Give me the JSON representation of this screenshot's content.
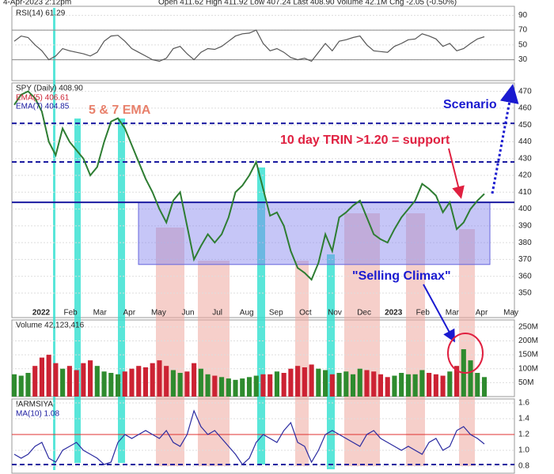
{
  "header": {
    "date": "4-Apr-2023 2:12pm",
    "quote": "Open 411.62 High 411.92 Low 407.24 Last 408.90 Volume 42.1M Chg -2.05 (-0.50%)"
  },
  "chart_data": [
    {
      "type": "line",
      "title": "RSI(14) 61.29",
      "color": "#555555",
      "ylim": [
        5,
        100
      ],
      "yticks": [
        30,
        50,
        70,
        90
      ],
      "hlines": [
        70,
        30
      ],
      "values": [
        55,
        62,
        60,
        50,
        42,
        30,
        35,
        45,
        42,
        40,
        38,
        35,
        40,
        55,
        62,
        63,
        55,
        45,
        40,
        35,
        30,
        28,
        32,
        45,
        48,
        38,
        30,
        40,
        45,
        44,
        48,
        55,
        62,
        65,
        66,
        70,
        52,
        42,
        45,
        40,
        33,
        30,
        32,
        28,
        40,
        52,
        42,
        55,
        57,
        60,
        62,
        50,
        42,
        41,
        40,
        48,
        52,
        57,
        58,
        65,
        62,
        58,
        48,
        52,
        42,
        45,
        52,
        58,
        61
      ]
    },
    {
      "type": "line",
      "title": "SPY (Daily) 408.90",
      "color": "#2e7d32",
      "legend_labels": [
        "EMA(5) 406.61",
        "EMA(7) 404.85"
      ],
      "annotations": [
        "5 & 7 EMA",
        "Scenario",
        "10 day TRIN >1.20 = support",
        "\"Selling Climax\""
      ],
      "xtick_labels": [
        "2022",
        "Feb",
        "Mar",
        "Apr",
        "May",
        "Jun",
        "Jul",
        "Aug",
        "Sep",
        "Oct",
        "Nov",
        "Dec",
        "2023",
        "Feb",
        "Mar",
        "Apr",
        "May"
      ],
      "ylim": [
        342,
        475
      ],
      "yticks": [
        350,
        360,
        370,
        380,
        390,
        400,
        410,
        420,
        430,
        440,
        450,
        460,
        470
      ],
      "hlines": [
        451,
        428,
        404
      ],
      "zone": [
        367,
        404
      ],
      "values": [
        462,
        468,
        470,
        466,
        458,
        440,
        432,
        448,
        440,
        435,
        430,
        420,
        425,
        440,
        452,
        454,
        448,
        438,
        428,
        418,
        410,
        400,
        392,
        405,
        410,
        390,
        370,
        378,
        385,
        380,
        385,
        395,
        410,
        414,
        420,
        428,
        412,
        396,
        398,
        390,
        375,
        365,
        362,
        358,
        368,
        385,
        375,
        395,
        398,
        402,
        405,
        395,
        385,
        382,
        380,
        388,
        395,
        400,
        405,
        415,
        412,
        408,
        398,
        404,
        388,
        392,
        400,
        405,
        409
      ]
    },
    {
      "type": "bar",
      "title": "Volume 42,123,416",
      "ylim": [
        0,
        275
      ],
      "yticks": [
        {
          "value": 50,
          "label": "50M"
        },
        {
          "value": 100,
          "label": "100M"
        },
        {
          "value": 150,
          "label": "150M"
        },
        {
          "value": 200,
          "label": "200M"
        },
        {
          "value": 250,
          "label": "250M"
        }
      ],
      "colors": [
        "#2e8b2e",
        "#cc2233"
      ],
      "values": [
        80,
        75,
        85,
        110,
        140,
        150,
        120,
        100,
        110,
        95,
        120,
        130,
        110,
        90,
        85,
        80,
        90,
        100,
        110,
        105,
        120,
        130,
        110,
        95,
        85,
        90,
        120,
        100,
        80,
        75,
        70,
        65,
        60,
        65,
        70,
        75,
        80,
        80,
        90,
        85,
        100,
        110,
        105,
        115,
        100,
        95,
        80,
        85,
        90,
        80,
        100,
        95,
        90,
        80,
        70,
        75,
        85,
        80,
        80,
        95,
        85,
        80,
        75,
        90,
        110,
        170,
        130,
        85,
        70
      ]
    },
    {
      "type": "line",
      "title": "!ARMSIYA",
      "subtitle": "MA(10) 1.08",
      "color": "#2a2aa0",
      "ylim": [
        0.7,
        1.65
      ],
      "yticks": [
        0.8,
        {
          "value": 1,
          "label": "1.0"
        },
        1.2,
        1.4,
        1.6
      ],
      "hlines": [
        1.2,
        0.82
      ],
      "values": [
        0.95,
        0.9,
        0.95,
        1.05,
        1.1,
        0.9,
        0.85,
        1.0,
        1.05,
        1.1,
        1.0,
        0.95,
        0.9,
        0.82,
        0.85,
        1.1,
        1.2,
        1.15,
        1.2,
        1.25,
        1.2,
        1.15,
        1.25,
        1.1,
        1.05,
        1.2,
        1.5,
        1.3,
        1.2,
        1.25,
        1.15,
        1.05,
        0.95,
        0.82,
        0.9,
        1.1,
        1.2,
        1.15,
        1.1,
        1.25,
        1.35,
        1.1,
        1.05,
        0.85,
        1.0,
        1.2,
        1.25,
        1.2,
        1.15,
        1.1,
        1.05,
        1.2,
        1.25,
        1.15,
        1.1,
        1.05,
        1.0,
        1.05,
        1.0,
        0.95,
        1.1,
        1.15,
        1.0,
        1.05,
        1.25,
        1.3,
        1.2,
        1.15,
        1.08
      ]
    }
  ]
}
